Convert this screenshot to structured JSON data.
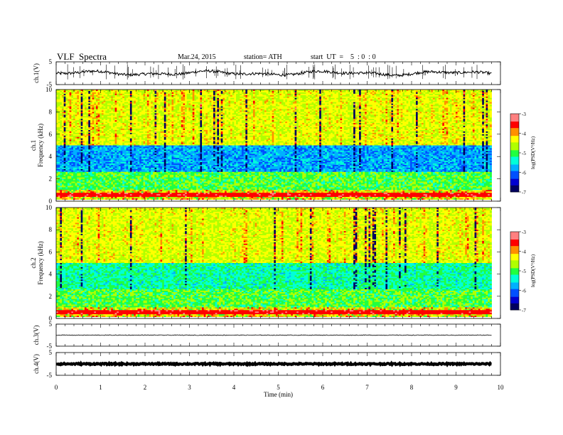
{
  "header": {
    "title": "VLF  Spectra",
    "date": "Mar.24, 2015",
    "station": "station= ATH",
    "start": "start  UT  =    5  : 0  : 0"
  },
  "colors": {
    "scale": [
      "#000060",
      "#0000d0",
      "#0050ff",
      "#00b0ff",
      "#00ffd8",
      "#20ff40",
      "#b0ff00",
      "#ffff00",
      "#ff9000",
      "#ff0000",
      "#ff8080",
      "#ffffff"
    ]
  },
  "chart_data": [
    {
      "type": "line",
      "panel": "ch1-waveform",
      "ylabel": "ch.1(V)",
      "ylim": [
        -5,
        5
      ],
      "yticks": [
        "5",
        "-5"
      ],
      "xlim": [
        0,
        10
      ],
      "baseline_v": 0.0,
      "noise_v": 0.6
    },
    {
      "type": "heatmap",
      "panel": "ch1-spectrogram",
      "ylabel": "ch.1 Frequency (kHz)",
      "ylim": [
        0,
        10
      ],
      "yticks": [
        "0",
        "2",
        "4",
        "6",
        "8",
        "10"
      ],
      "xlim": [
        0,
        9.8
      ],
      "colorbar": {
        "label": "log(PSD(V²/Hz)",
        "ticks": [
          "-3",
          "-4",
          "-5",
          "-6",
          "-7"
        ],
        "range": [
          -7,
          -3
        ]
      }
    },
    {
      "type": "heatmap",
      "panel": "ch2-spectrogram",
      "ylabel": "ch.2 Frequency (kHz)",
      "ylim": [
        0,
        10
      ],
      "yticks": [
        "0",
        "2",
        "4",
        "6",
        "8",
        "10"
      ],
      "xlim": [
        0,
        9.8
      ],
      "colorbar": {
        "label": "log(PSD(V²/Hz)",
        "ticks": [
          "-3",
          "-4",
          "-5",
          "-6",
          "-7"
        ],
        "range": [
          -7,
          -3
        ]
      }
    },
    {
      "type": "line",
      "panel": "ch3-waveform",
      "ylabel": "ch.3(V)",
      "ylim": [
        -5,
        5
      ],
      "yticks": [
        "5",
        "-5"
      ],
      "xlim": [
        0,
        10
      ],
      "baseline_v": 0.0,
      "noise_v": 0.15
    },
    {
      "type": "line",
      "panel": "ch4-waveform",
      "ylabel": "ch.4(V)",
      "ylim": [
        -5,
        5
      ],
      "yticks": [
        "5",
        "-5"
      ],
      "xlim": [
        0,
        10
      ],
      "baseline_v": 0.0,
      "noise_v": 0.3
    }
  ],
  "xaxis": {
    "label": "Time  (min)",
    "ticks": [
      "0",
      "1",
      "2",
      "3",
      "4",
      "5",
      "6",
      "7",
      "8",
      "9",
      "10"
    ],
    "range": [
      0,
      10
    ]
  }
}
